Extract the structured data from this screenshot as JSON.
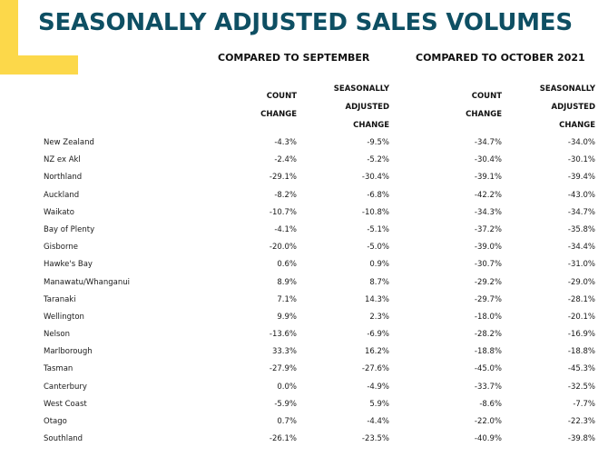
{
  "title": "SEASONALLY ADJUSTED SALES VOLUMES",
  "groups": {
    "september": "COMPARED TO SEPTEMBER",
    "october_2021": "COMPARED TO OCTOBER 2021"
  },
  "column_headers": {
    "count_change": [
      "COUNT",
      "CHANGE"
    ],
    "seasonally_adjusted_change": [
      "SEASONALLY",
      "ADJUSTED",
      "CHANGE"
    ]
  },
  "colors": {
    "title": "#0e4f63",
    "accent": "#fcd84a"
  },
  "rows": [
    {
      "region": "New Zealand",
      "sep_count": "-4.3%",
      "sep_sa": "-9.5%",
      "oct_count": "-34.7%",
      "oct_sa": "-34.0%"
    },
    {
      "region": "NZ ex Akl",
      "sep_count": "-2.4%",
      "sep_sa": "-5.2%",
      "oct_count": "-30.4%",
      "oct_sa": "-30.1%"
    },
    {
      "region": "Northland",
      "sep_count": "-29.1%",
      "sep_sa": "-30.4%",
      "oct_count": "-39.1%",
      "oct_sa": "-39.4%"
    },
    {
      "region": "Auckland",
      "sep_count": "-8.2%",
      "sep_sa": "-6.8%",
      "oct_count": "-42.2%",
      "oct_sa": "-43.0%"
    },
    {
      "region": "Waikato",
      "sep_count": "-10.7%",
      "sep_sa": "-10.8%",
      "oct_count": "-34.3%",
      "oct_sa": "-34.7%"
    },
    {
      "region": "Bay of Plenty",
      "sep_count": "-4.1%",
      "sep_sa": "-5.1%",
      "oct_count": "-37.2%",
      "oct_sa": "-35.8%"
    },
    {
      "region": "Gisborne",
      "sep_count": "-20.0%",
      "sep_sa": "-5.0%",
      "oct_count": "-39.0%",
      "oct_sa": "-34.4%"
    },
    {
      "region": "Hawke's Bay",
      "sep_count": "0.6%",
      "sep_sa": "0.9%",
      "oct_count": "-30.7%",
      "oct_sa": "-31.0%"
    },
    {
      "region": "Manawatu/Whanganui",
      "sep_count": "8.9%",
      "sep_sa": "8.7%",
      "oct_count": "-29.2%",
      "oct_sa": "-29.0%"
    },
    {
      "region": "Taranaki",
      "sep_count": "7.1%",
      "sep_sa": "14.3%",
      "oct_count": "-29.7%",
      "oct_sa": "-28.1%"
    },
    {
      "region": "Wellington",
      "sep_count": "9.9%",
      "sep_sa": "2.3%",
      "oct_count": "-18.0%",
      "oct_sa": "-20.1%"
    },
    {
      "region": "Nelson",
      "sep_count": "-13.6%",
      "sep_sa": "-6.9%",
      "oct_count": "-28.2%",
      "oct_sa": "-16.9%"
    },
    {
      "region": "Marlborough",
      "sep_count": "33.3%",
      "sep_sa": "16.2%",
      "oct_count": "-18.8%",
      "oct_sa": "-18.8%"
    },
    {
      "region": "Tasman",
      "sep_count": "-27.9%",
      "sep_sa": "-27.6%",
      "oct_count": "-45.0%",
      "oct_sa": "-45.3%"
    },
    {
      "region": "Canterbury",
      "sep_count": "0.0%",
      "sep_sa": "-4.9%",
      "oct_count": "-33.7%",
      "oct_sa": "-32.5%"
    },
    {
      "region": "West Coast",
      "sep_count": "-5.9%",
      "sep_sa": "5.9%",
      "oct_count": "-8.6%",
      "oct_sa": "-7.7%"
    },
    {
      "region": "Otago",
      "sep_count": "0.7%",
      "sep_sa": "-4.4%",
      "oct_count": "-22.0%",
      "oct_sa": "-22.3%"
    },
    {
      "region": "Southland",
      "sep_count": "-26.1%",
      "sep_sa": "-23.5%",
      "oct_count": "-40.9%",
      "oct_sa": "-39.8%"
    }
  ]
}
